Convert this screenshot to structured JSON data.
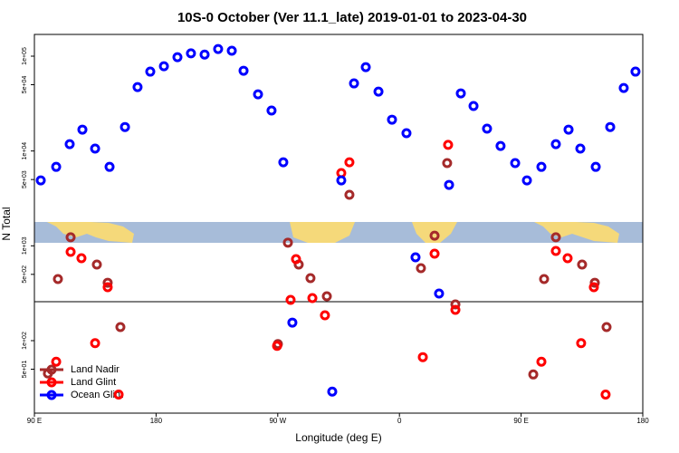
{
  "chart_data": {
    "type": "scatter",
    "title": "10S-0 October (Ver 11.1_late)   2019-01-01 to 2023-04-30",
    "x_label": "Longitude (deg E)",
    "y_label": "N Total",
    "log_y": true,
    "legend": "lower left",
    "xlim": [
      90,
      540
    ],
    "ylim": [
      17.2,
      169500
    ],
    "xticks": [
      {
        "value": 90,
        "label": "90 E"
      },
      {
        "value": 180,
        "label": "180"
      },
      {
        "value": 270,
        "label": "90 W"
      },
      {
        "value": 360,
        "label": "0"
      },
      {
        "value": 450,
        "label": "90 E"
      },
      {
        "value": 540,
        "label": "180"
      }
    ],
    "yticks": [
      {
        "value": 50,
        "label": "5e+01"
      },
      {
        "value": 100,
        "label": "1e+02"
      },
      {
        "value": 500,
        "label": "5e+02"
      },
      {
        "value": 1000,
        "label": "1e+03"
      },
      {
        "value": 5000,
        "label": "5e+03"
      },
      {
        "value": 10000,
        "label": "1e+04"
      },
      {
        "value": 50000,
        "label": "5e+04"
      },
      {
        "value": 100000,
        "label": "1e+05"
      }
    ],
    "series": [
      {
        "name": "Land Nadir",
        "color": "#a52a2a",
        "x": [
          100,
          107.4,
          116.8,
          136.2,
          144.2,
          153.6,
          270.1,
          277.5,
          285.5,
          294.2,
          306.3,
          323,
          375.9,
          386,
          395.3,
          401.4,
          459,
          467,
          475.7,
          495.1,
          504.5,
          513.2
        ],
        "values": [
          45,
          446,
          1230,
          634,
          408,
          139,
          92,
          1080,
          634,
          456,
          294,
          3450,
          581,
          1280,
          7450,
          241,
          44,
          446,
          1230,
          634,
          408,
          139
        ]
      },
      {
        "name": "Land Glint",
        "color": "#ff0000",
        "x": [
          106.1,
          116.8,
          124.8,
          134.9,
          144.2,
          152.3,
          269.5,
          279.5,
          283.5,
          295.6,
          304.9,
          317,
          323,
          377.3,
          386,
          396,
          401.4,
          465,
          475.7,
          484.4,
          494.4,
          503.8,
          512.5
        ],
        "values": [
          60,
          863,
          740,
          94,
          366,
          27,
          88,
          269,
          724,
          281,
          185,
          5850,
          7600,
          67,
          826,
          11600,
          211,
          60,
          883,
          740,
          94,
          366,
          27
        ]
      },
      {
        "name": "Ocean Glint",
        "color": "#0000ff",
        "x": [
          94.7,
          106.1,
          116.1,
          125.5,
          134.9,
          145.6,
          157,
          166.3,
          175.7,
          185.8,
          195.8,
          205.8,
          215.9,
          225.9,
          236,
          244.7,
          255.4,
          265.4,
          274.1,
          280.8,
          310.3,
          317,
          326.4,
          335.1,
          344.5,
          354.5,
          365.2,
          371.9,
          389.3,
          396.7,
          405.4,
          414.8,
          424.8,
          434.8,
          445.6,
          454.3,
          465,
          475.7,
          485.1,
          493.8,
          505.2,
          515.9,
          525.9,
          534.6
        ],
        "values": [
          4900,
          6800,
          11800,
          16800,
          10600,
          6800,
          17900,
          47200,
          68700,
          78300,
          97600,
          107000,
          104000,
          119000,
          114000,
          70200,
          39600,
          26700,
          7600,
          155,
          29,
          4900,
          51600,
          76600,
          42300,
          21400,
          15400,
          757,
          314,
          4390,
          40500,
          29800,
          17200,
          11300,
          7450,
          4900,
          6800,
          11800,
          16800,
          10600,
          6800,
          17900,
          46200,
          68700
        ]
      }
    ]
  }
}
